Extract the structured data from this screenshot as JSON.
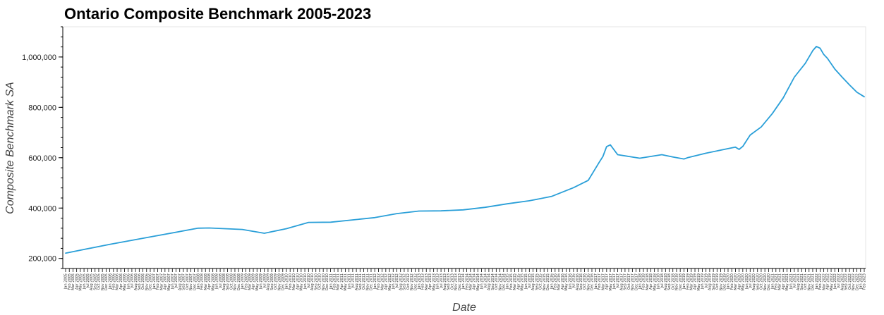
{
  "chart_data": {
    "type": "line",
    "title": "Ontario Composite Benchmark 2005-2023",
    "xlabel": "Date",
    "ylabel": "Composite Benchmark SA",
    "ylim": [
      160000,
      1120000
    ],
    "yticks": [
      200000,
      400000,
      600000,
      800000,
      1000000
    ],
    "ytick_labels": [
      "200,000",
      "400,000",
      "600,000",
      "800,000",
      "1,000,000"
    ],
    "x_start": "Jan 2005",
    "x_end": "Feb 2023",
    "x_tick_labels": [
      "Jan 2005",
      "Feb 2005",
      "Mar 2005",
      "Apr 2005",
      "May 2005",
      "Jun 2005",
      "Jul 2005",
      "Aug 2005",
      "Sep 2005",
      "Oct 2005",
      "Nov 2005",
      "Dec 2005",
      "Jan 2006",
      "Feb 2006",
      "Mar 2006",
      "Apr 2006",
      "May 2006",
      "Jun 2006",
      "Jul 2006",
      "Aug 2006",
      "Sep 2006",
      "Oct 2006",
      "Nov 2006",
      "Dec 2006",
      "Jan 2007",
      "Feb 2007",
      "Mar 2007",
      "Apr 2007",
      "May 2007",
      "Jun 2007",
      "Jul 2007",
      "Aug 2007",
      "Sep 2007",
      "Oct 2007",
      "Nov 2007",
      "Dec 2007",
      "Jan 2008",
      "Feb 2008",
      "Mar 2008",
      "Apr 2008",
      "May 2008",
      "Jun 2008",
      "Jul 2008",
      "Aug 2008",
      "Sep 2008",
      "Oct 2008",
      "Nov 2008",
      "Dec 2008",
      "Jan 2009",
      "Feb 2009",
      "Mar 2009",
      "Apr 2009",
      "May 2009",
      "Jun 2009",
      "Jul 2009",
      "Aug 2009",
      "Sep 2009",
      "Oct 2009",
      "Nov 2009",
      "Dec 2009",
      "Jan 2010",
      "Feb 2010",
      "Mar 2010",
      "Apr 2010",
      "May 2010",
      "Jun 2010",
      "Jul 2010",
      "Aug 2010",
      "Sep 2010",
      "Oct 2010",
      "Nov 2010",
      "Dec 2010",
      "Jan 2011",
      "Feb 2011",
      "Mar 2011",
      "Apr 2011",
      "May 2011",
      "Jun 2011",
      "Jul 2011",
      "Aug 2011",
      "Sep 2011",
      "Oct 2011",
      "Nov 2011",
      "Dec 2011",
      "Jan 2012",
      "Feb 2012",
      "Mar 2012",
      "Apr 2012",
      "May 2012",
      "Jun 2012",
      "Jul 2012",
      "Aug 2012",
      "Sep 2012",
      "Oct 2012",
      "Nov 2012",
      "Dec 2012",
      "Jan 2013",
      "Feb 2013",
      "Mar 2013",
      "Apr 2013",
      "May 2013",
      "Jun 2013",
      "Jul 2013",
      "Aug 2013",
      "Sep 2013",
      "Oct 2013",
      "Nov 2013",
      "Dec 2013",
      "Jan 2014",
      "Feb 2014",
      "Mar 2014",
      "Apr 2014",
      "May 2014",
      "Jun 2014",
      "Jul 2014",
      "Aug 2014",
      "Sep 2014",
      "Oct 2014",
      "Nov 2014",
      "Dec 2014",
      "Jan 2015",
      "Feb 2015",
      "Mar 2015",
      "Apr 2015",
      "May 2015",
      "Jun 2015",
      "Jul 2015",
      "Aug 2015",
      "Sep 2015",
      "Oct 2015",
      "Nov 2015",
      "Dec 2015",
      "Jan 2016",
      "Feb 2016",
      "Mar 2016",
      "Apr 2016",
      "May 2016",
      "Jun 2016",
      "Jul 2016",
      "Aug 2016",
      "Sep 2016",
      "Oct 2016",
      "Nov 2016",
      "Dec 2016",
      "Jan 2017",
      "Feb 2017",
      "Mar 2017",
      "Apr 2017",
      "May 2017",
      "Jun 2017",
      "Jul 2017",
      "Aug 2017",
      "Sep 2017",
      "Oct 2017",
      "Nov 2017",
      "Dec 2017",
      "Jan 2018",
      "Feb 2018",
      "Mar 2018",
      "Apr 2018",
      "May 2018",
      "Jun 2018",
      "Jul 2018",
      "Aug 2018",
      "Sep 2018",
      "Oct 2018",
      "Nov 2018",
      "Dec 2018",
      "Jan 2019",
      "Feb 2019",
      "Mar 2019",
      "Apr 2019",
      "May 2019",
      "Jun 2019",
      "Jul 2019",
      "Aug 2019",
      "Sep 2019",
      "Oct 2019",
      "Nov 2019",
      "Dec 2019",
      "Jan 2020",
      "Feb 2020",
      "Mar 2020",
      "Apr 2020",
      "May 2020",
      "Jun 2020",
      "Jul 2020",
      "Aug 2020",
      "Sep 2020",
      "Oct 2020",
      "Nov 2020",
      "Dec 2020",
      "Jan 2021",
      "Feb 2021",
      "Mar 2021",
      "Apr 2021",
      "May 2021",
      "Jun 2021",
      "Jul 2021",
      "Aug 2021",
      "Sep 2021",
      "Oct 2021",
      "Nov 2021",
      "Dec 2021",
      "Jan 2022",
      "Feb 2022",
      "Mar 2022",
      "Apr 2022",
      "May 2022",
      "Jun 2022",
      "Jul 2022",
      "Aug 2022",
      "Sep 2022",
      "Oct 2022",
      "Nov 2022",
      "Dec 2022",
      "Jan 2023",
      "Feb 2023"
    ],
    "x": [
      "Jan 2005",
      "Jan 2006",
      "Jan 2007",
      "Jan 2008",
      "Apr 2008",
      "Jan 2009",
      "Jul 2009",
      "Jan 2010",
      "Jul 2010",
      "Jan 2011",
      "Jan 2012",
      "Jul 2012",
      "Jan 2013",
      "Jul 2013",
      "Jan 2014",
      "Jul 2014",
      "Jan 2015",
      "Jul 2015",
      "Jan 2016",
      "Jul 2016",
      "Nov 2016",
      "Feb 2017",
      "Mar 2017",
      "Apr 2017",
      "May 2017",
      "Jul 2017",
      "Oct 2017",
      "Jan 2018",
      "Jul 2018",
      "Oct 2018",
      "Jan 2019",
      "Feb 2019",
      "Jul 2019",
      "Jan 2020",
      "Mar 2020",
      "Apr 2020",
      "May 2020",
      "Jul 2020",
      "Oct 2020",
      "Jan 2021",
      "Apr 2021",
      "Jul 2021",
      "Oct 2021",
      "Dec 2021",
      "Jan 2022",
      "Feb 2022",
      "Mar 2022",
      "Apr 2022",
      "Jun 2022",
      "Aug 2022",
      "Oct 2022",
      "Dec 2022",
      "Feb 2023"
    ],
    "series": [
      {
        "color": "#2a9fd8",
        "values": [
          221000,
          256000,
          288000,
          320000,
          321000,
          315000,
          300000,
          318000,
          343000,
          344000,
          362000,
          378000,
          388000,
          389000,
          393000,
          403000,
          417000,
          429000,
          446000,
          481000,
          510000,
          582000,
          605000,
          644000,
          651000,
          612000,
          605000,
          598000,
          612000,
          603000,
          595000,
          600000,
          618000,
          636000,
          642000,
          633000,
          645000,
          690000,
          722000,
          775000,
          838000,
          920000,
          975000,
          1025000,
          1042000,
          1035000,
          1010000,
          995000,
          952000,
          920000,
          889000,
          860000,
          842000
        ]
      }
    ]
  }
}
